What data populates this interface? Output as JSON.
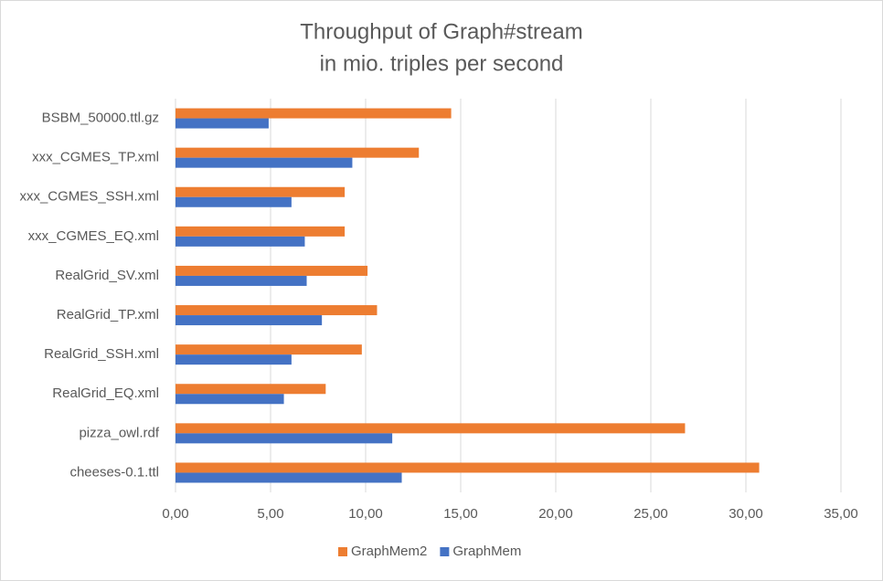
{
  "chart_data": {
    "type": "hbar",
    "title": "Throughput of Graph#stream",
    "subtitle": "in mio. triples per second",
    "categories": [
      "BSBM_50000.ttl.gz",
      "xxx_CGMES_TP.xml",
      "xxx_CGMES_SSH.xml",
      "xxx_CGMES_EQ.xml",
      "RealGrid_SV.xml",
      "RealGrid_TP.xml",
      "RealGrid_SSH.xml",
      "RealGrid_EQ.xml",
      "pizza_owl.rdf",
      "cheeses-0.1.ttl"
    ],
    "series": [
      {
        "name": "GraphMem2",
        "color": "#ed7d31",
        "values": [
          14.5,
          12.8,
          8.9,
          8.9,
          10.1,
          10.6,
          9.8,
          7.9,
          26.8,
          30.7
        ]
      },
      {
        "name": "GraphMem",
        "color": "#4472c4",
        "values": [
          4.9,
          9.3,
          6.1,
          6.8,
          6.9,
          7.7,
          6.1,
          5.7,
          11.4,
          11.9
        ]
      }
    ],
    "xlim": [
      0,
      35
    ],
    "xticks": [
      {
        "value": 0,
        "label": "0,00"
      },
      {
        "value": 5,
        "label": "5,00"
      },
      {
        "value": 10,
        "label": "10,00"
      },
      {
        "value": 15,
        "label": "15,00"
      },
      {
        "value": 20,
        "label": "20,00"
      },
      {
        "value": 25,
        "label": "25,00"
      },
      {
        "value": 30,
        "label": "30,00"
      },
      {
        "value": 35,
        "label": "35,00"
      }
    ],
    "grid": true,
    "legend": "bottom"
  }
}
